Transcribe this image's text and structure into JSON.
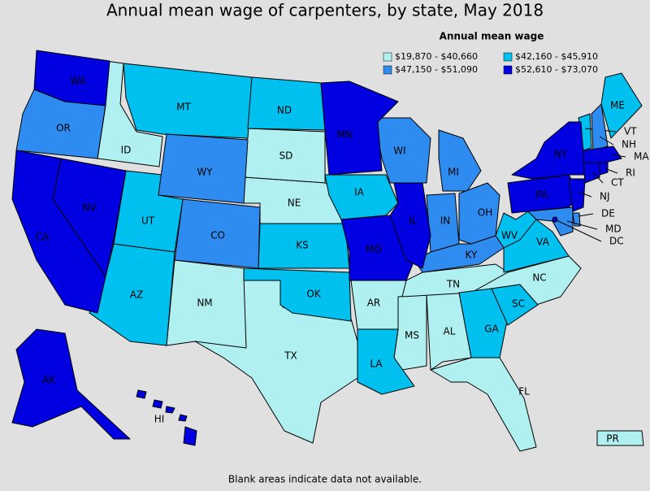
{
  "title": "Annual mean wage of carpenters, by state, May 2018",
  "legend": {
    "title": "Annual mean wage",
    "items": [
      {
        "label": "$19,870 - $40,660",
        "color": "#b0f0f0",
        "states": [
          "ID",
          "SD",
          "NE",
          "NM",
          "TX",
          "AR",
          "MS",
          "AL",
          "TN",
          "NC",
          "FL",
          "PR"
        ]
      },
      {
        "label": "$42,160 - $45,910",
        "color": "#00c0f0",
        "states": [
          "MT",
          "ND",
          "UT",
          "AZ",
          "KS",
          "OK",
          "IA",
          "LA",
          "GA",
          "SC",
          "VA",
          "WV",
          "ME",
          "VT"
        ]
      },
      {
        "label": "$47,150 - $51,090",
        "color": "#2e8cf0",
        "states": [
          "OR",
          "WY",
          "CO",
          "WI",
          "MI",
          "IN",
          "OH",
          "KY",
          "NH",
          "DE",
          "MD"
        ]
      },
      {
        "label": "$52,610 - $73,070",
        "color": "#0000e0",
        "states": [
          "WA",
          "CA",
          "NV",
          "MN",
          "MO",
          "IL",
          "NY",
          "PA",
          "NJ",
          "MA",
          "CT",
          "RI",
          "AK",
          "HI",
          "DC"
        ]
      }
    ]
  },
  "footnote": "Blank areas indicate data not available."
}
